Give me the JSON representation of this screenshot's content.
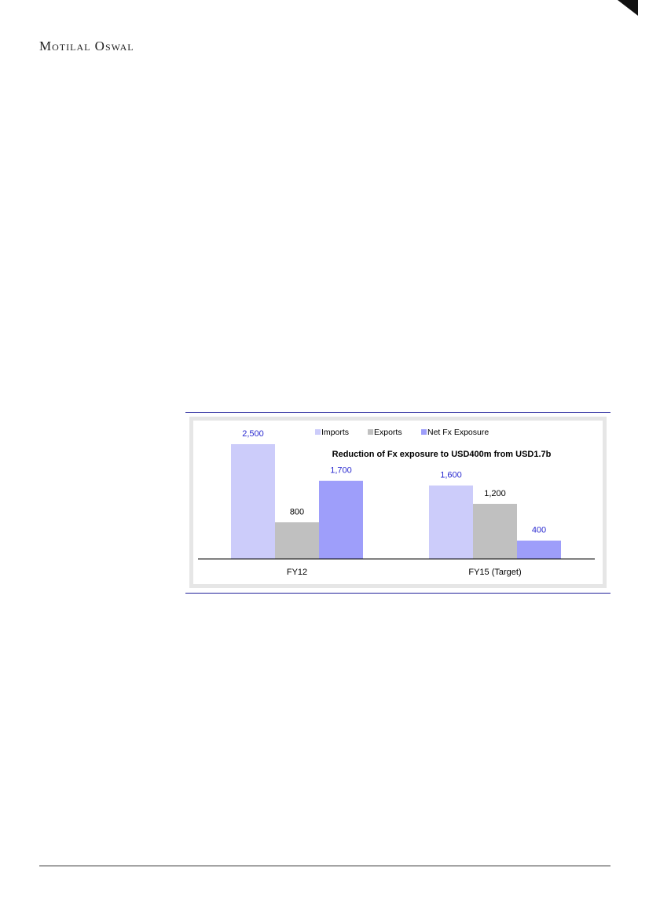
{
  "header": {
    "brand": "Motilal Oswal"
  },
  "colors": {
    "imports": "#ccccfa",
    "exports": "#c0c0c0",
    "net": "#9e9efa",
    "label_blue": "#2a2ad0",
    "frame": "#22229a"
  },
  "chart_data": {
    "type": "bar",
    "title": "Reduction of Fx exposure to USD400m from USD1.7b",
    "categories": [
      "FY12",
      "FY15 (Target)"
    ],
    "series": [
      {
        "name": "Imports",
        "values": [
          2500,
          1600
        ],
        "labels": [
          "2,500",
          "1,600"
        ]
      },
      {
        "name": "Exports",
        "values": [
          800,
          1200
        ],
        "labels": [
          "800",
          "1,200"
        ]
      },
      {
        "name": "Net Fx Exposure",
        "values": [
          1700,
          400
        ],
        "labels": [
          "1,700",
          "400"
        ]
      }
    ],
    "ylim": [
      0,
      2500
    ],
    "legend": "top",
    "grid": false
  }
}
